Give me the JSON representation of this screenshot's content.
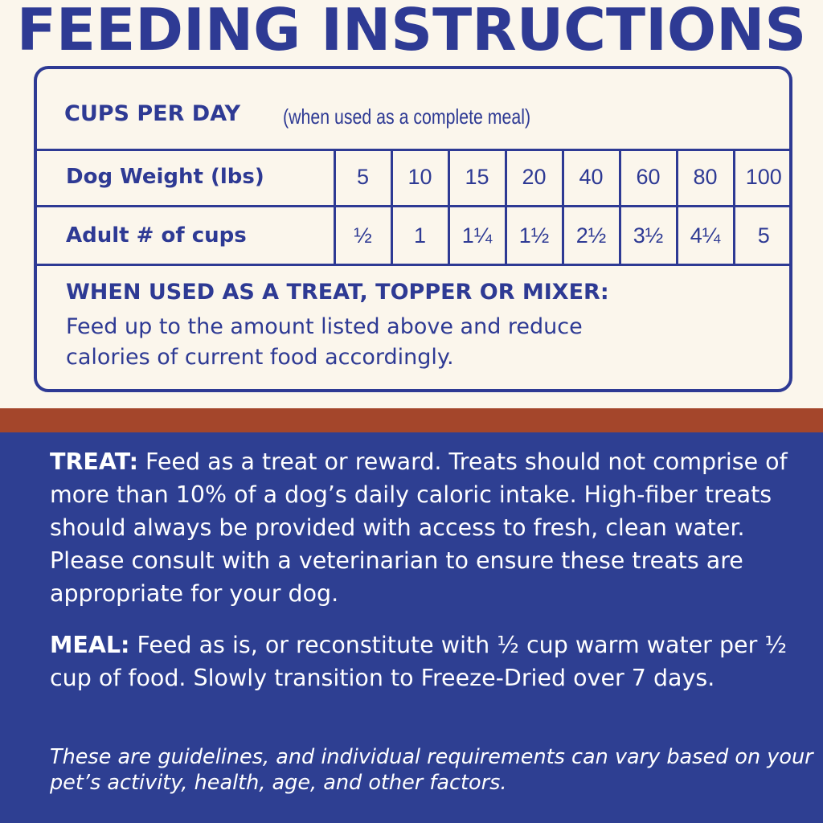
{
  "title": "FEEDING INSTRUCTIONS",
  "cups_per_day": {
    "heading": "CUPS PER DAY",
    "subheading": "(when used as a complete meal)"
  },
  "table": {
    "row1_label": "Dog Weight (lbs)",
    "weights": [
      "5",
      "10",
      "15",
      "20",
      "40",
      "60",
      "80",
      "100"
    ],
    "row2_label": "Adult # of cups",
    "cups": [
      "½",
      "1",
      "1¼",
      "1½",
      "2½",
      "3½",
      "4¼",
      "5"
    ]
  },
  "treat_topper": {
    "heading": "WHEN USED AS A TREAT, TOPPER OR MIXER:",
    "line1": "Feed up to the amount listed above and reduce",
    "line2": "calories of current food accordingly."
  },
  "treat_section": {
    "label": "TREAT:",
    "text": "Feed as a treat or reward. Treats should not comprise of more than 10% of a dog’s daily caloric intake. High-fiber treats should always be provided with access to fresh, clean water. Please consult with a veterinarian to ensure these treats are appropriate for your dog."
  },
  "meal_section": {
    "label": "MEAL:",
    "text": "Feed as is, or reconstitute with ½ cup warm water per ½ cup of food. Slowly transition to Freeze-Dried over 7 days."
  },
  "note": "These are guidelines, and individual requirements can vary based on your pet’s activity, health, age, and other factors.",
  "colors": {
    "navy": "#2E3A94",
    "panel_blue": "#2E3F92",
    "rust": "#A4462B",
    "cream": "#FBF6EC"
  }
}
